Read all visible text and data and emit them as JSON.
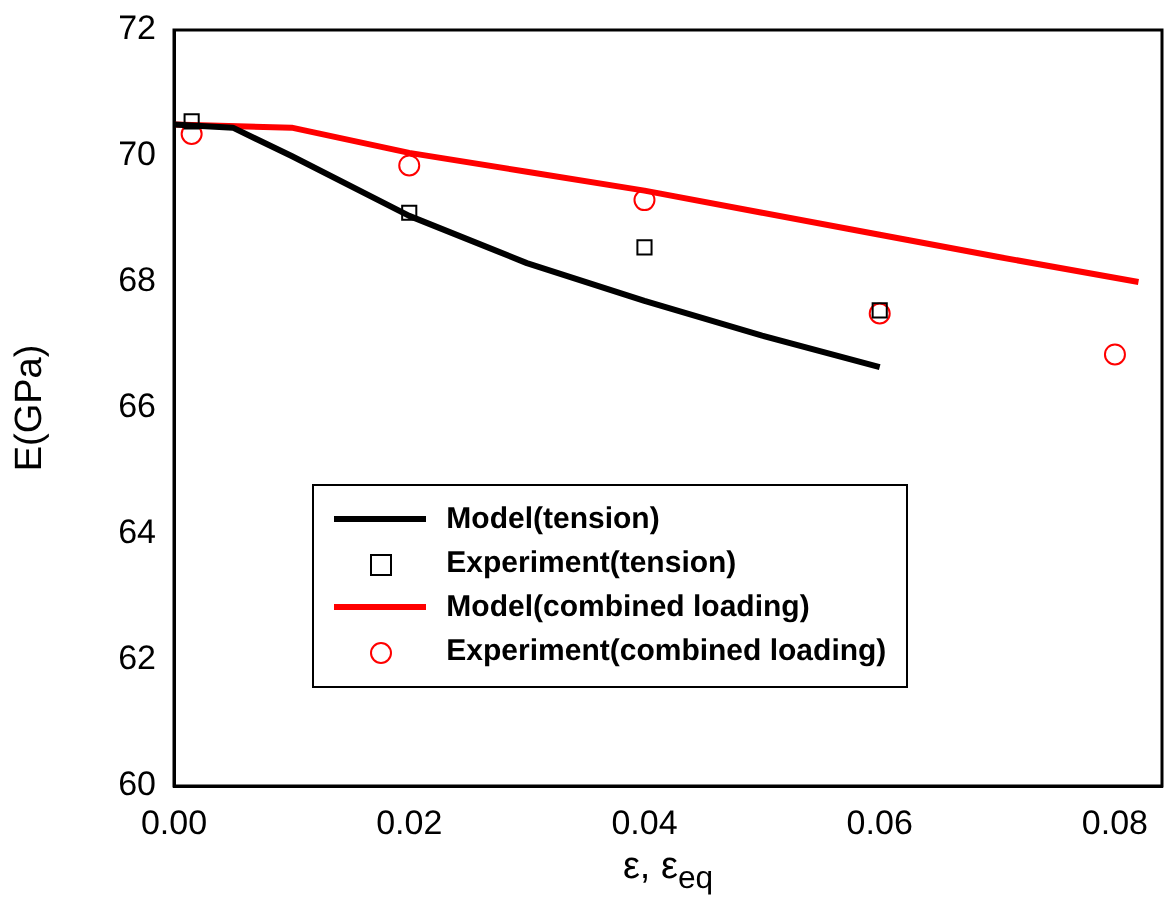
{
  "chart_data": {
    "type": "line",
    "xlabel": "ε, ε$_{eq}$",
    "ylabel": "E(GPa)",
    "xlim": [
      0,
      0.084
    ],
    "xticks": [
      {
        "value": 0,
        "label": "0.00"
      },
      {
        "value": 0.02,
        "label": "0.02"
      },
      {
        "value": 0.04,
        "label": "0.04"
      },
      {
        "value": 0.06,
        "label": "0.06"
      },
      {
        "value": 0.08,
        "label": "0.08"
      }
    ],
    "ylim": [
      60,
      72
    ],
    "yticks": [
      60,
      62,
      64,
      66,
      68,
      70,
      72
    ],
    "grid": false,
    "legend": "bottom",
    "series": [
      {
        "name": "Model(tension)",
        "type": "line",
        "color": "#000000",
        "marker": "none",
        "x": [
          0,
          0.005,
          0.01,
          0.02,
          0.03,
          0.04,
          0.05,
          0.06
        ],
        "values": [
          70.5,
          70.45,
          70.0,
          69.05,
          68.3,
          67.7,
          67.15,
          66.65
        ]
      },
      {
        "name": "Experiment(tension)",
        "type": "scatter",
        "color": "#000000",
        "marker": "square",
        "x": [
          0.0015,
          0.02,
          0.04,
          0.06
        ],
        "values": [
          70.55,
          69.1,
          68.55,
          67.55
        ]
      },
      {
        "name": "Model(combined loading)",
        "type": "line",
        "color": "#ff0000",
        "marker": "none",
        "x": [
          0,
          0.01,
          0.02,
          0.03,
          0.04,
          0.05,
          0.06,
          0.07,
          0.082
        ],
        "values": [
          70.5,
          70.45,
          70.05,
          69.75,
          69.45,
          69.1,
          68.75,
          68.4,
          68.0
        ]
      },
      {
        "name": "Experiment(combined loading)",
        "type": "scatter",
        "color": "#ff0000",
        "marker": "circle",
        "x": [
          0.0015,
          0.02,
          0.04,
          0.06,
          0.08
        ],
        "values": [
          70.35,
          69.85,
          69.3,
          67.5,
          66.85
        ]
      }
    ]
  }
}
